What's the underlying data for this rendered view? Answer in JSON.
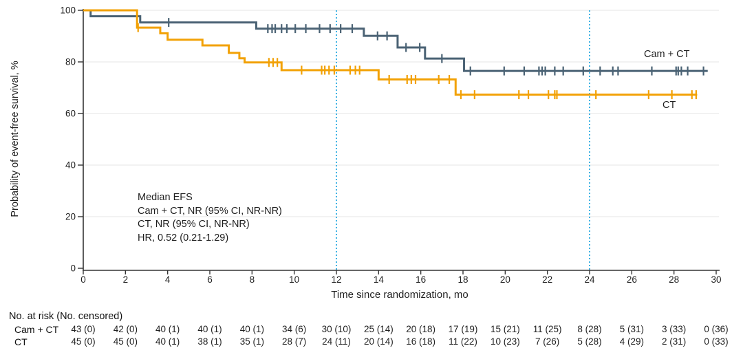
{
  "figure": {
    "y_axis_title": "Probability of event-free survival, %",
    "x_axis_title": "Time since randomization, mo",
    "annotation": {
      "line1": "Median EFS",
      "line2": "Cam + CT, NR (95% CI, NR-NR)",
      "line3": "CT, NR (95% CI, NR-NR)",
      "line4": "HR, 0.52 (0.21-1.29)"
    },
    "series_labels": {
      "cam_ct": "Cam + CT",
      "ct": "CT"
    }
  },
  "chart_data": {
    "type": "line",
    "subtype": "kaplan-meier-step",
    "title": "",
    "xlabel": "Time since randomization, mo",
    "ylabel": "Probability of event-free survival, %",
    "xlim": [
      0,
      30
    ],
    "ylim": [
      0,
      100
    ],
    "x_ticks": [
      0,
      2,
      4,
      6,
      8,
      10,
      12,
      14,
      16,
      18,
      20,
      22,
      24,
      26,
      28,
      30
    ],
    "y_ticks": [
      0,
      20,
      40,
      60,
      80,
      100
    ],
    "grid": "horizontal-20pct",
    "grid_color": "#ebebeb",
    "axis_color": "#333333",
    "reference_lines_x": [
      12,
      24
    ],
    "reference_line_color": "#3fb3e4",
    "legend_position": "on-curve-right",
    "series": [
      {
        "name": "Cam + CT",
        "color": "#4a6274",
        "steps": [
          [
            0,
            100
          ],
          [
            0.35,
            97.7
          ],
          [
            2.7,
            95.3
          ],
          [
            8.2,
            92.9
          ],
          [
            13.3,
            90.1
          ],
          [
            14.9,
            85.6
          ],
          [
            16.2,
            81.3
          ],
          [
            18.05,
            76.5
          ],
          [
            29.6,
            76.5
          ]
        ],
        "censor_x": [
          4.05,
          8.75,
          8.95,
          9.1,
          9.4,
          9.65,
          10.05,
          10.55,
          11.2,
          11.7,
          12.2,
          12.75,
          13.95,
          14.4,
          15.3,
          15.95,
          17.0,
          18.35,
          19.95,
          20.9,
          21.6,
          21.75,
          21.9,
          22.35,
          22.75,
          23.7,
          24.5,
          25.1,
          25.35,
          26.95,
          28.1,
          28.2,
          28.35,
          28.65,
          29.4
        ]
      },
      {
        "name": "CT",
        "color": "#f2a105",
        "steps": [
          [
            0,
            100
          ],
          [
            2.55,
            93.3
          ],
          [
            3.65,
            91.1
          ],
          [
            4.0,
            88.6
          ],
          [
            5.65,
            86.4
          ],
          [
            6.9,
            83.5
          ],
          [
            7.4,
            81.4
          ],
          [
            7.65,
            79.8
          ],
          [
            9.4,
            76.8
          ],
          [
            14.0,
            73.2
          ],
          [
            17.65,
            67.3
          ],
          [
            29.1,
            67.3
          ]
        ],
        "censor_x": [
          2.6,
          8.8,
          9.0,
          9.2,
          10.35,
          11.3,
          11.45,
          11.65,
          11.9,
          12.65,
          12.9,
          13.1,
          14.5,
          15.35,
          15.55,
          15.75,
          16.85,
          17.35,
          17.9,
          18.55,
          20.65,
          21.1,
          22.05,
          22.35,
          22.45,
          24.3,
          26.8,
          27.9,
          28.85,
          29.05
        ]
      }
    ]
  },
  "risk_table": {
    "header": "No. at risk (No. censored)",
    "months": [
      0,
      2,
      4,
      6,
      8,
      10,
      12,
      14,
      16,
      18,
      20,
      22,
      24,
      26,
      28,
      30
    ],
    "rows": [
      {
        "label": "Cam + CT",
        "values": [
          "43 (0)",
          "42 (0)",
          "40 (1)",
          "40 (1)",
          "40 (1)",
          "34 (6)",
          "30 (10)",
          "25 (14)",
          "20 (18)",
          "17 (19)",
          "15 (21)",
          "11 (25)",
          "8 (28)",
          "5 (31)",
          "3 (33)",
          "0 (36)"
        ]
      },
      {
        "label": "CT",
        "values": [
          "45 (0)",
          "45 (0)",
          "40 (1)",
          "38 (1)",
          "35 (1)",
          "28 (7)",
          "24 (11)",
          "20 (14)",
          "16 (18)",
          "11 (22)",
          "10 (23)",
          "7 (26)",
          "5 (28)",
          "4 (29)",
          "2 (31)",
          "0 (33)"
        ]
      }
    ]
  }
}
